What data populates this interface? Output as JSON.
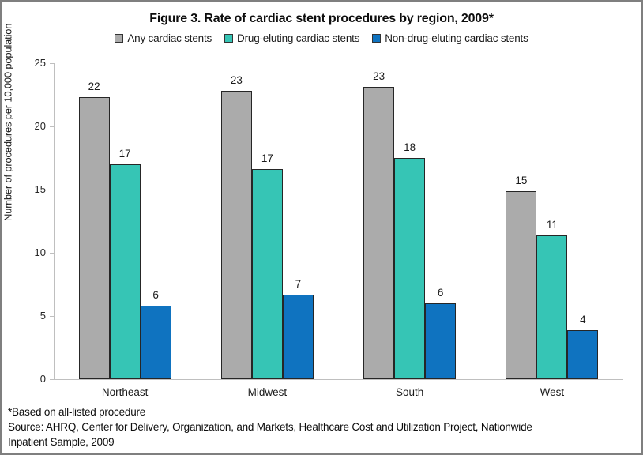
{
  "chart_data": {
    "type": "bar",
    "title": "Figure 3. Rate of cardiac stent procedures by region, 2009*",
    "ylabel": "Number of procedures per 10,000 population",
    "xlabel": "",
    "categories": [
      "Northeast",
      "Midwest",
      "South",
      "West"
    ],
    "series": [
      {
        "name": "Any cardiac stents",
        "color": "#ababab",
        "values": [
          22.3,
          22.8,
          23.1,
          14.9
        ],
        "data_labels": [
          "22",
          "23",
          "23",
          "15"
        ]
      },
      {
        "name": "Drug-eluting cardiac stents",
        "color": "#36c5b5",
        "values": [
          17.0,
          16.6,
          17.5,
          11.4
        ],
        "data_labels": [
          "17",
          "17",
          "18",
          "11"
        ]
      },
      {
        "name": "Non-drug-eluting cardiac stents",
        "color": "#0f73c0",
        "values": [
          5.8,
          6.7,
          6.0,
          3.9
        ],
        "data_labels": [
          "6",
          "7",
          "6",
          "4"
        ]
      }
    ],
    "ylim": [
      0,
      25
    ],
    "yticks": [
      0,
      5,
      10,
      15,
      20,
      25
    ],
    "legend_position": "top",
    "grid": false,
    "axis_color": "#bfbfbf",
    "bar_outline_color": "#262626"
  },
  "footnotes": {
    "asterisk_note": "*Based on all-listed procedure",
    "source_lines": [
      "Source: AHRQ, Center for Delivery, Organization, and Markets, Healthcare Cost and Utilization Project, Nationwide",
      "Inpatient Sample, 2009"
    ]
  }
}
